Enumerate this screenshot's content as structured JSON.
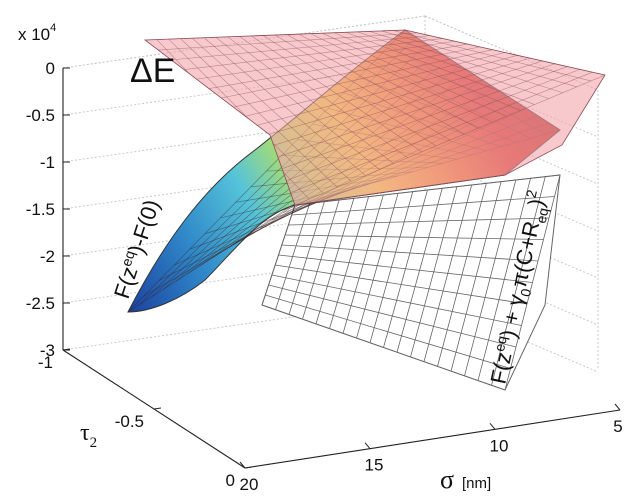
{
  "chart_data": {
    "type": "surface",
    "title": "",
    "x_axis": {
      "label": "σ",
      "unit": "[nm]",
      "range": [
        5,
        20
      ],
      "ticks": [
        "5",
        "10",
        "15",
        "20"
      ]
    },
    "y_axis": {
      "label": "τ",
      "label_sub": "2",
      "range": [
        -1,
        0
      ],
      "ticks": [
        "-1",
        "-0.5",
        "0"
      ]
    },
    "z_axis": {
      "multiplier": "x 10",
      "multiplier_exp": "4",
      "range": [
        -3,
        0
      ],
      "ticks": [
        "0",
        "-0.5",
        "-1",
        "-1.5",
        "-2",
        "-2.5",
        "-3"
      ]
    },
    "grid": true,
    "surfaces": [
      {
        "name": "ΔE",
        "style": "translucent-pink mesh",
        "corner_values_x1e4": {
          "sigma20_tau-1": -0.05,
          "sigma5_tau-1": -0.5,
          "sigma5_tau0": -1.1,
          "sigma20_tau0": -1.05
        }
      },
      {
        "name": "F(z^eq)-F(0)",
        "style": "colormap (jet) shaded",
        "corner_values_x1e4": {
          "sigma20_tau-1": -2.6,
          "sigma5_tau-1": 0.0,
          "sigma5_tau0": -0.6,
          "sigma20_tau0": -1.2
        }
      },
      {
        "name": "F(z^eq) + γ0π(C+R_eq)^2",
        "style": "white wireframe",
        "corner_values_x1e4": {
          "sigma20_tau-1": -1.75,
          "sigma5_tau-1": -0.9,
          "sigma5_tau0": -1.1,
          "sigma20_tau0": -1.3
        }
      }
    ]
  },
  "labels": {
    "delta_e": "ΔE",
    "f_diff": "F(z^eq)-F(0)",
    "f_diff_parts": {
      "pre": "F(z",
      "sup": "eq",
      "post": ")-F(0)"
    },
    "f_total_parts": {
      "pre": "F(z",
      "sup": "eq",
      "mid": ") + γ",
      "sub0": "0",
      "pi": "π(C+R",
      "subeq": "eq",
      "close": ")",
      "sq": "2"
    }
  }
}
